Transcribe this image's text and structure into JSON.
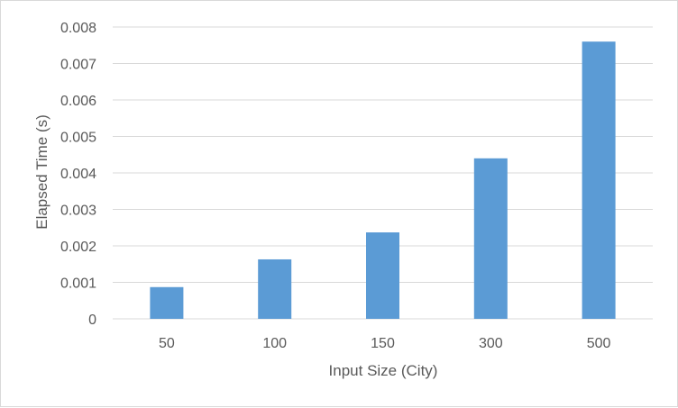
{
  "chart_data": {
    "type": "bar",
    "title": "",
    "xlabel": "Input Size (City)",
    "ylabel": "Elapsed Time (s)",
    "categories": [
      "50",
      "100",
      "150",
      "300",
      "500"
    ],
    "values": [
      0.00087,
      0.00163,
      0.00237,
      0.0044,
      0.0076
    ],
    "ylim": [
      0,
      0.008
    ],
    "yticks": [
      "0",
      "0.001",
      "0.002",
      "0.003",
      "0.004",
      "0.005",
      "0.006",
      "0.007",
      "0.008"
    ],
    "grid": true,
    "legend": "none",
    "colors": {
      "bar": "#5b9bd5",
      "grid": "#d9d9d9",
      "text": "#595959"
    }
  }
}
